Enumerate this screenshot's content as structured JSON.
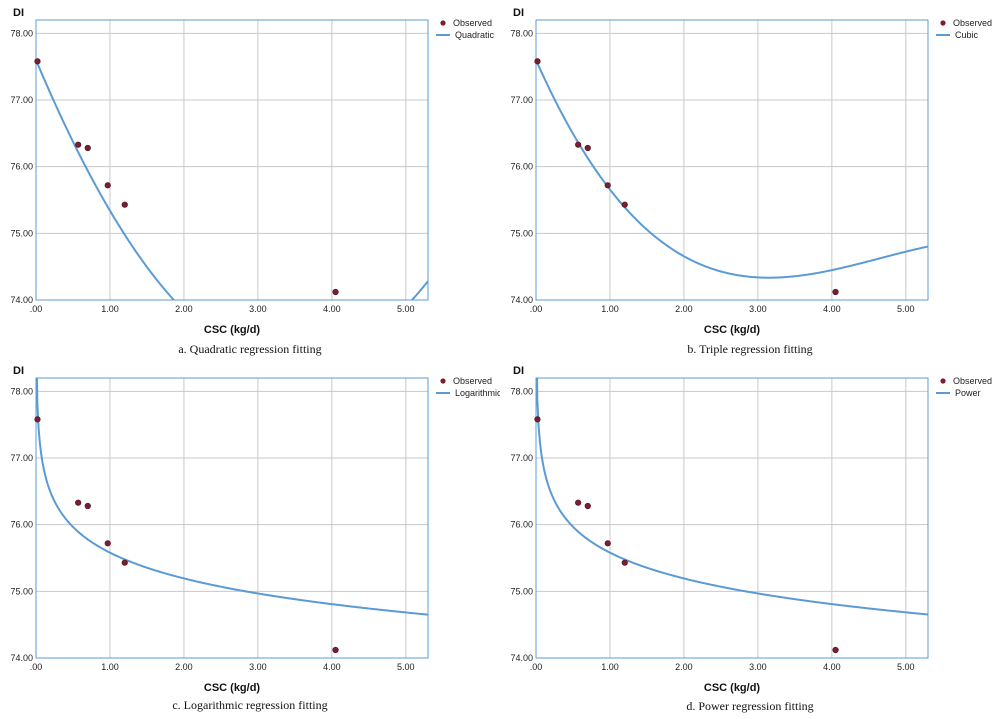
{
  "colors": {
    "curve": "#5b9bd5",
    "point": "#7b1e2e",
    "grid": "#c8c8c8",
    "frame": "#5b9bd5"
  },
  "chart_data": [
    {
      "type": "scatter",
      "title": "",
      "caption": "a. Quadratic regression fitting",
      "ylabel": "DI",
      "xlabel": "CSC (kg/d)",
      "xlim": [
        0,
        5.3
      ],
      "ylim": [
        74.0,
        78.2
      ],
      "xticks": [
        ".00",
        "1.00",
        "2.00",
        "3.00",
        "4.00",
        "5.00"
      ],
      "yticks": [
        "74.00",
        "75.00",
        "76.00",
        "77.00",
        "78.00"
      ],
      "legend": {
        "observed": "Observed",
        "fit": "Quadratic"
      },
      "observed": {
        "x": [
          0.02,
          0.57,
          0.7,
          0.97,
          1.2,
          4.05
        ],
        "y": [
          77.58,
          76.33,
          76.28,
          75.72,
          75.43,
          74.12
        ]
      },
      "fit": {
        "model": "quadratic",
        "coef": [
          77.6,
          -2.64,
          0.38
        ]
      }
    },
    {
      "type": "scatter",
      "title": "",
      "caption": "b. Triple regression fitting",
      "ylabel": "DI",
      "xlabel": "CSC (kg/d)",
      "xlim": [
        0,
        5.3
      ],
      "ylim": [
        74.0,
        78.2
      ],
      "xticks": [
        ".00",
        "1.00",
        "2.00",
        "3.00",
        "4.00",
        "5.00"
      ],
      "yticks": [
        "74.00",
        "75.00",
        "76.00",
        "77.00",
        "78.00"
      ],
      "legend": {
        "observed": "Observed",
        "fit": "Cubic"
      },
      "observed": {
        "x": [
          0.02,
          0.57,
          0.7,
          0.97,
          1.2,
          4.05
        ],
        "y": [
          77.58,
          76.33,
          76.28,
          75.72,
          75.43,
          74.12
        ]
      },
      "fit": {
        "model": "cubic",
        "coef": [
          77.6,
          -2.5,
          0.6,
          -0.043
        ]
      }
    },
    {
      "type": "scatter",
      "title": "",
      "caption": "c. Logarithmic regression fitting",
      "ylabel": "DI",
      "xlabel": "CSC (kg/d)",
      "xlim": [
        0,
        5.3
      ],
      "ylim": [
        74.0,
        78.2
      ],
      "xticks": [
        ".00",
        "1.00",
        "2.00",
        "3.00",
        "4.00",
        "5.00"
      ],
      "yticks": [
        "74.00",
        "75.00",
        "76.00",
        "77.00",
        "78.00"
      ],
      "legend": {
        "observed": "Observed",
        "fit": "Logarithmic"
      },
      "observed": {
        "x": [
          0.02,
          0.57,
          0.7,
          0.97,
          1.2,
          4.05
        ],
        "y": [
          77.58,
          76.33,
          76.28,
          75.72,
          75.43,
          74.12
        ]
      },
      "fit": {
        "model": "logarithmic",
        "coef": [
          75.58,
          -0.557
        ]
      }
    },
    {
      "type": "scatter",
      "title": "",
      "caption": "d. Power regression fitting",
      "ylabel": "DI",
      "xlabel": "CSC (kg/d)",
      "xlim": [
        0,
        5.3
      ],
      "ylim": [
        74.0,
        78.2
      ],
      "xticks": [
        ".00",
        "1.00",
        "2.00",
        "3.00",
        "4.00",
        "5.00"
      ],
      "yticks": [
        "74.00",
        "75.00",
        "76.00",
        "77.00",
        "78.00"
      ],
      "legend": {
        "observed": "Observed",
        "fit": "Power"
      },
      "observed": {
        "x": [
          0.02,
          0.57,
          0.7,
          0.97,
          1.2,
          4.05
        ],
        "y": [
          77.58,
          76.33,
          76.28,
          75.72,
          75.43,
          74.12
        ]
      },
      "fit": {
        "model": "power",
        "coef": [
          75.58,
          -0.0074
        ]
      }
    }
  ]
}
